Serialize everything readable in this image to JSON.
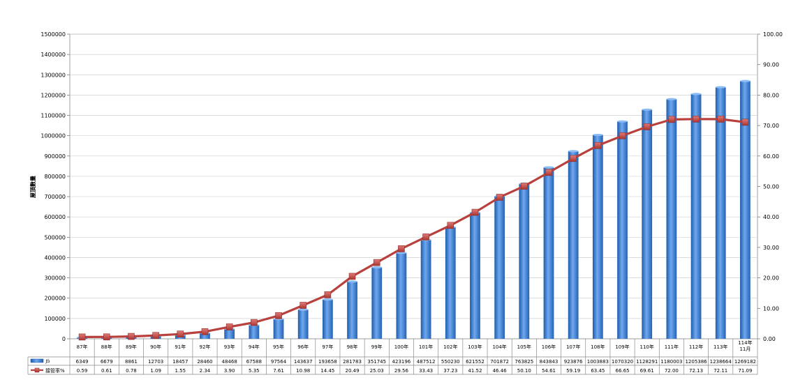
{
  "chart_data": {
    "type": "bar",
    "ylabel": "屋頂數量",
    "categories": [
      "87年",
      "88年",
      "89年",
      "90年",
      "91年",
      "92年",
      "93年",
      "94年",
      "95年",
      "96年",
      "97年",
      "98年",
      "99年",
      "100年",
      "101年",
      "102年",
      "103年",
      "104年",
      "105年",
      "106年",
      "107年",
      "108年",
      "109年",
      "110年",
      "111年",
      "112年",
      "113年",
      "114年 11月"
    ],
    "ylim_left": [
      0,
      1500000
    ],
    "ylim_right": [
      0,
      100
    ],
    "left_ticks": [
      "0",
      "100000",
      "200000",
      "300000",
      "400000",
      "500000",
      "600000",
      "700000",
      "800000",
      "900000",
      "1000000",
      "1100000",
      "1200000",
      "1300000",
      "1400000",
      "1500000"
    ],
    "right_ticks": [
      "0.00",
      "10.00",
      "20.00",
      "30.00",
      "40.00",
      "50.00",
      "60.00",
      "70.00",
      "80.00",
      "90.00",
      "100.00"
    ],
    "series": [
      {
        "name": "戶",
        "type": "bar",
        "axis": "left",
        "color": "#3A7FD5",
        "values": [
          6349,
          6679,
          8861,
          12703,
          18457,
          28460,
          48468,
          67588,
          97564,
          143637,
          193658,
          281783,
          351745,
          423196,
          487512,
          550230,
          621552,
          701872,
          763825,
          843843,
          923876,
          1003883,
          1070320,
          1128291,
          1180003,
          1205386,
          1238664,
          1269182
        ]
      },
      {
        "name": "接管率%",
        "type": "line",
        "axis": "right",
        "color": "#C0504D",
        "values": [
          "0.59",
          "0.61",
          "0.78",
          "1.09",
          "1.55",
          "2.34",
          "3.90",
          "5.35",
          "7.61",
          "10.98",
          "14.45",
          "20.49",
          "25.03",
          "29.56",
          "33.43",
          "37.23",
          "41.52",
          "46.46",
          "50.10",
          "54.61",
          "59.19",
          "63.45",
          "66.65",
          "69.61",
          "72.00",
          "72.13",
          "72.11",
          "71.09"
        ]
      }
    ],
    "grid": true,
    "legend": "data-table"
  }
}
